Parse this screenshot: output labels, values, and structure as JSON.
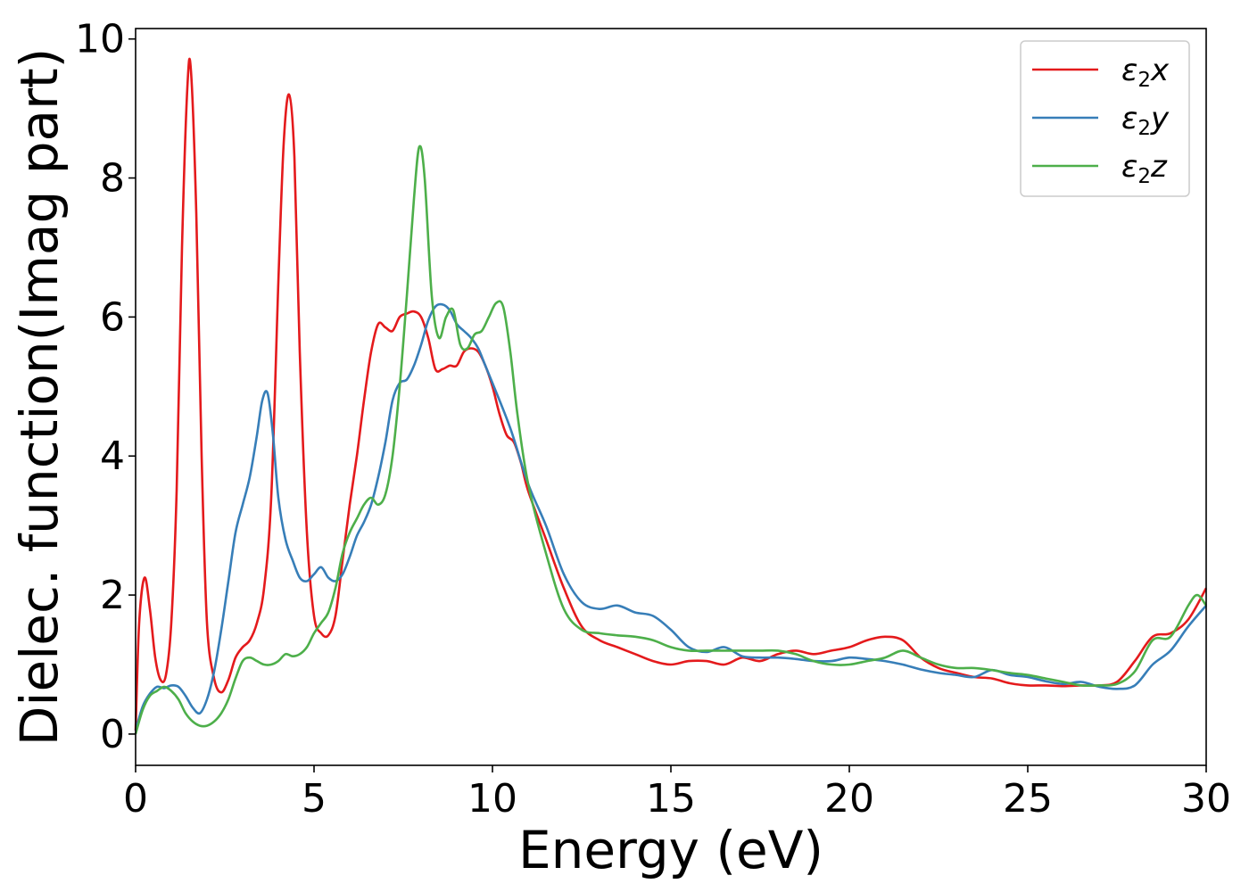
{
  "chart_data": {
    "type": "line",
    "title": "",
    "xlabel": "Energy (eV)",
    "ylabel": "Dielec. function(Imag part)",
    "xlim": [
      0,
      30
    ],
    "ylim": [
      -0.45,
      10.15
    ],
    "xticks": [
      0,
      5,
      10,
      15,
      20,
      25,
      30
    ],
    "yticks": [
      0,
      2,
      4,
      6,
      8,
      10
    ],
    "xtick_labels": [
      "0",
      "5",
      "10",
      "15",
      "20",
      "25",
      "30"
    ],
    "ytick_labels": [
      "0",
      "2",
      "4",
      "6",
      "8",
      "10"
    ],
    "grid": false,
    "legend_position": "top-right",
    "series": [
      {
        "name": "ε₂x",
        "legend_base": "ε",
        "legend_sub": "2",
        "legend_var": "x",
        "color": "#e41a1c",
        "x": [
          0,
          0.1,
          0.25,
          0.4,
          0.55,
          0.7,
          0.85,
          1.0,
          1.15,
          1.3,
          1.45,
          1.55,
          1.7,
          1.85,
          2.0,
          2.2,
          2.4,
          2.6,
          2.8,
          3.0,
          3.2,
          3.4,
          3.6,
          3.8,
          4.0,
          4.15,
          4.3,
          4.45,
          4.6,
          4.8,
          5.0,
          5.2,
          5.4,
          5.6,
          5.8,
          6.0,
          6.2,
          6.4,
          6.6,
          6.8,
          7.0,
          7.2,
          7.4,
          7.6,
          7.8,
          8.0,
          8.2,
          8.4,
          8.6,
          8.8,
          9.0,
          9.2,
          9.4,
          9.6,
          9.8,
          10.0,
          10.2,
          10.4,
          10.6,
          10.8,
          11.0,
          11.5,
          12.0,
          12.5,
          13.0,
          13.5,
          14.0,
          14.5,
          15.0,
          15.5,
          16.0,
          16.5,
          17.0,
          17.5,
          18.0,
          18.5,
          19.0,
          19.5,
          20.0,
          20.5,
          21.0,
          21.5,
          22.0,
          22.5,
          23.0,
          23.5,
          24.0,
          24.5,
          25.0,
          25.5,
          26.0,
          26.5,
          27.0,
          27.5,
          28.0,
          28.5,
          29.0,
          29.5,
          30.0
        ],
        "y": [
          0.05,
          1.6,
          2.25,
          1.8,
          1.1,
          0.78,
          0.85,
          1.6,
          3.5,
          7.0,
          9.3,
          9.55,
          7.5,
          4.0,
          1.6,
          0.8,
          0.6,
          0.78,
          1.1,
          1.25,
          1.35,
          1.6,
          2.1,
          3.4,
          6.5,
          8.5,
          9.2,
          8.3,
          5.5,
          2.9,
          1.7,
          1.45,
          1.42,
          1.7,
          2.5,
          3.3,
          4.0,
          4.8,
          5.5,
          5.9,
          5.85,
          5.8,
          6.0,
          6.05,
          6.08,
          6.0,
          5.7,
          5.25,
          5.25,
          5.3,
          5.3,
          5.5,
          5.55,
          5.5,
          5.3,
          5.0,
          4.6,
          4.3,
          4.2,
          3.9,
          3.5,
          2.8,
          2.1,
          1.55,
          1.35,
          1.25,
          1.15,
          1.05,
          1.0,
          1.05,
          1.05,
          1.0,
          1.1,
          1.05,
          1.15,
          1.2,
          1.15,
          1.2,
          1.25,
          1.35,
          1.4,
          1.35,
          1.1,
          0.95,
          0.88,
          0.82,
          0.8,
          0.73,
          0.7,
          0.7,
          0.69,
          0.7,
          0.7,
          0.75,
          1.05,
          1.4,
          1.45,
          1.65,
          2.1
        ]
      },
      {
        "name": "ε₂y",
        "legend_base": "ε",
        "legend_sub": "2",
        "legend_var": "y",
        "color": "#377eb8",
        "x": [
          0,
          0.2,
          0.4,
          0.6,
          0.8,
          1.0,
          1.2,
          1.4,
          1.6,
          1.8,
          2.0,
          2.2,
          2.4,
          2.6,
          2.8,
          3.0,
          3.2,
          3.4,
          3.55,
          3.7,
          3.85,
          4.0,
          4.2,
          4.4,
          4.6,
          4.8,
          5.0,
          5.2,
          5.4,
          5.6,
          5.8,
          6.0,
          6.2,
          6.4,
          6.6,
          6.8,
          7.0,
          7.2,
          7.4,
          7.6,
          7.8,
          8.0,
          8.2,
          8.4,
          8.6,
          8.8,
          9.0,
          9.2,
          9.4,
          9.6,
          9.8,
          10.0,
          10.5,
          11.0,
          11.5,
          12.0,
          12.5,
          13.0,
          13.5,
          14.0,
          14.5,
          15.0,
          15.5,
          16.0,
          16.5,
          17.0,
          17.5,
          18.0,
          18.5,
          19.0,
          19.5,
          20.0,
          20.5,
          21.0,
          21.5,
          22.0,
          22.5,
          23.0,
          23.5,
          24.0,
          24.5,
          25.0,
          25.5,
          26.0,
          26.5,
          27.0,
          27.5,
          28.0,
          28.5,
          29.0,
          29.5,
          30.0
        ],
        "y": [
          0.05,
          0.4,
          0.58,
          0.68,
          0.66,
          0.7,
          0.68,
          0.55,
          0.38,
          0.3,
          0.5,
          0.9,
          1.5,
          2.2,
          2.9,
          3.3,
          3.7,
          4.3,
          4.8,
          4.9,
          4.3,
          3.4,
          2.8,
          2.5,
          2.25,
          2.2,
          2.3,
          2.4,
          2.25,
          2.2,
          2.3,
          2.55,
          2.85,
          3.05,
          3.3,
          3.7,
          4.2,
          4.8,
          5.05,
          5.1,
          5.3,
          5.6,
          5.95,
          6.15,
          6.18,
          6.1,
          5.9,
          5.8,
          5.7,
          5.55,
          5.3,
          5.05,
          4.4,
          3.6,
          3.0,
          2.3,
          1.9,
          1.8,
          1.85,
          1.75,
          1.7,
          1.5,
          1.25,
          1.18,
          1.25,
          1.12,
          1.1,
          1.1,
          1.08,
          1.05,
          1.05,
          1.1,
          1.08,
          1.05,
          1.0,
          0.93,
          0.88,
          0.85,
          0.82,
          0.92,
          0.85,
          0.82,
          0.76,
          0.72,
          0.75,
          0.68,
          0.65,
          0.7,
          1.0,
          1.2,
          1.55,
          1.85
        ]
      },
      {
        "name": "ε₂z",
        "legend_base": "ε",
        "legend_sub": "2",
        "legend_var": "z",
        "color": "#4daf4a",
        "x": [
          0,
          0.2,
          0.4,
          0.6,
          0.8,
          1.0,
          1.2,
          1.4,
          1.6,
          1.8,
          2.0,
          2.2,
          2.4,
          2.6,
          2.8,
          3.0,
          3.2,
          3.4,
          3.6,
          3.8,
          4.0,
          4.2,
          4.4,
          4.6,
          4.8,
          5.0,
          5.2,
          5.4,
          5.6,
          5.8,
          6.0,
          6.2,
          6.4,
          6.6,
          6.8,
          7.0,
          7.2,
          7.4,
          7.6,
          7.8,
          7.95,
          8.1,
          8.3,
          8.5,
          8.7,
          8.9,
          9.1,
          9.3,
          9.5,
          9.7,
          9.9,
          10.1,
          10.3,
          10.5,
          10.7,
          11.0,
          11.5,
          12.0,
          12.5,
          13.0,
          13.5,
          14.0,
          14.5,
          15.0,
          15.5,
          16.0,
          16.5,
          17.0,
          17.5,
          18.0,
          18.5,
          19.0,
          19.5,
          20.0,
          20.5,
          21.0,
          21.5,
          22.0,
          22.5,
          23.0,
          23.5,
          24.0,
          24.5,
          25.0,
          25.5,
          26.0,
          26.5,
          27.0,
          27.5,
          28.0,
          28.5,
          29.0,
          29.5,
          29.75,
          30.0
        ],
        "y": [
          0.0,
          0.35,
          0.55,
          0.62,
          0.68,
          0.62,
          0.5,
          0.3,
          0.18,
          0.12,
          0.12,
          0.18,
          0.3,
          0.5,
          0.8,
          1.05,
          1.1,
          1.05,
          1.0,
          1.0,
          1.05,
          1.15,
          1.12,
          1.15,
          1.25,
          1.45,
          1.6,
          1.75,
          2.1,
          2.6,
          2.9,
          3.1,
          3.3,
          3.4,
          3.3,
          3.45,
          4.0,
          5.0,
          6.3,
          7.7,
          8.45,
          8.0,
          6.3,
          5.7,
          6.0,
          6.1,
          5.6,
          5.55,
          5.75,
          5.8,
          6.0,
          6.2,
          6.15,
          5.5,
          4.6,
          3.6,
          2.6,
          1.8,
          1.5,
          1.45,
          1.42,
          1.4,
          1.35,
          1.25,
          1.2,
          1.2,
          1.2,
          1.2,
          1.2,
          1.2,
          1.15,
          1.05,
          1.0,
          1.0,
          1.05,
          1.1,
          1.2,
          1.1,
          1.0,
          0.95,
          0.95,
          0.92,
          0.88,
          0.85,
          0.8,
          0.75,
          0.7,
          0.7,
          0.72,
          0.9,
          1.35,
          1.4,
          1.85,
          2.0,
          1.85
        ]
      }
    ]
  }
}
